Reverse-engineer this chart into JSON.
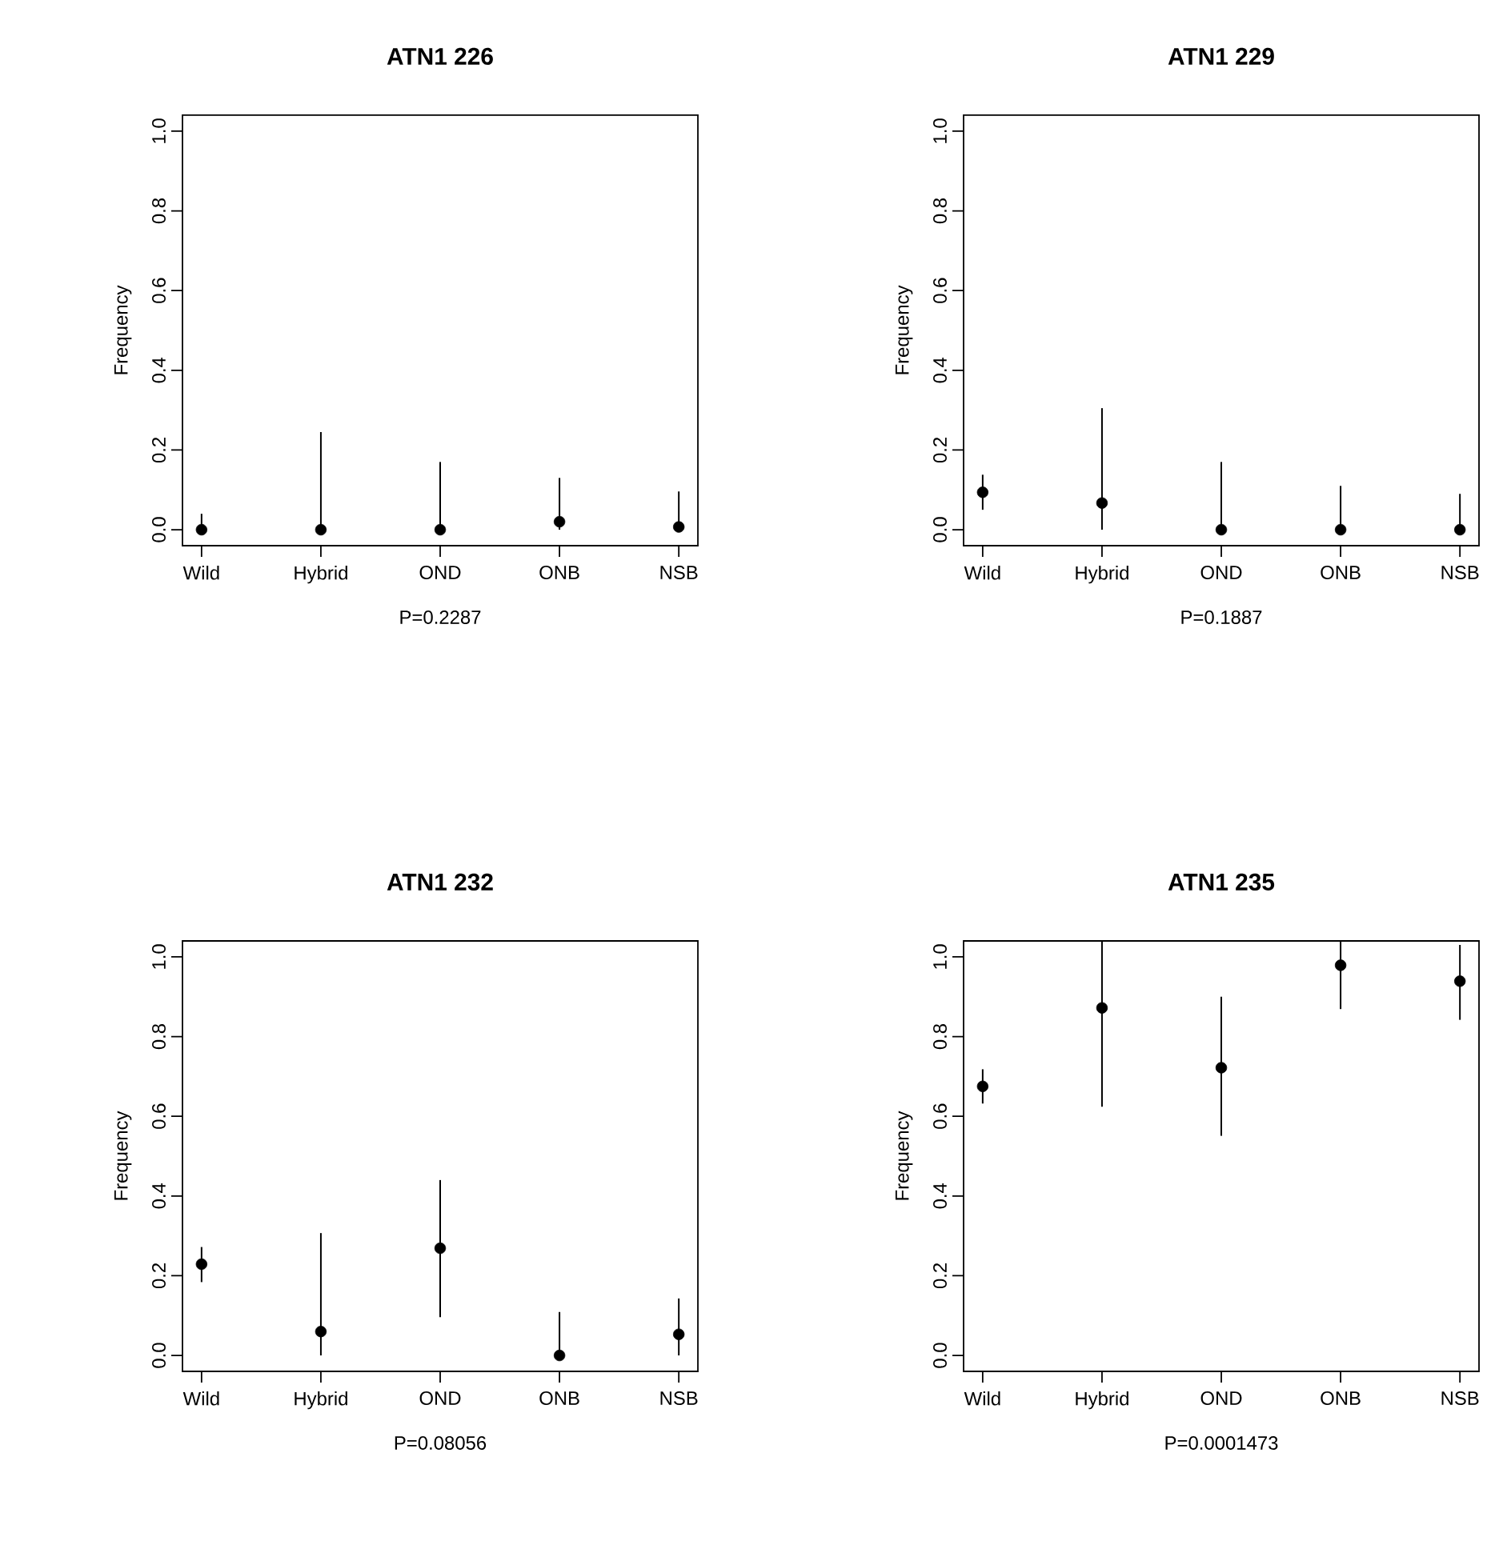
{
  "chart_data": [
    {
      "type": "scatter",
      "title": "ATN1 226",
      "xlabel": "P=0.2287",
      "ylabel": "Frequency",
      "categories": [
        "Wild",
        "Hybrid",
        "OND",
        "ONB",
        "NSB"
      ],
      "color": "#000000",
      "marker": "circle",
      "values": [
        0,
        0,
        0,
        0.02,
        0.007
      ],
      "errors": [
        [
          0,
          0.04
        ],
        [
          0,
          0.245
        ],
        [
          0,
          0.17
        ],
        [
          0,
          0.13
        ],
        [
          0,
          0.096
        ]
      ],
      "ylim": [
        -0.04,
        1.04
      ],
      "yticks": [
        {
          "value": 0,
          "label": "0.0"
        },
        {
          "value": 0.2,
          "label": "0.2"
        },
        {
          "value": 0.4,
          "label": "0.4"
        },
        {
          "value": 0.6,
          "label": "0.6"
        },
        {
          "value": 0.8,
          "label": "0.8"
        },
        {
          "value": 1,
          "label": "1.0"
        }
      ]
    },
    {
      "type": "scatter",
      "title": "ATN1 229",
      "xlabel": "P=0.1887",
      "ylabel": "Frequency",
      "categories": [
        "Wild",
        "Hybrid",
        "OND",
        "ONB",
        "NSB"
      ],
      "color": "#000000",
      "marker": "circle",
      "values": [
        0.094,
        0.067,
        0,
        0,
        0
      ],
      "errors": [
        [
          0.05,
          0.138
        ],
        [
          0,
          0.305
        ],
        [
          0,
          0.17
        ],
        [
          0,
          0.11
        ],
        [
          0,
          0.09
        ]
      ],
      "ylim": [
        -0.04,
        1.04
      ],
      "yticks": [
        {
          "value": 0,
          "label": "0.0"
        },
        {
          "value": 0.2,
          "label": "0.2"
        },
        {
          "value": 0.4,
          "label": "0.4"
        },
        {
          "value": 0.6,
          "label": "0.6"
        },
        {
          "value": 0.8,
          "label": "0.8"
        },
        {
          "value": 1,
          "label": "1.0"
        }
      ]
    },
    {
      "type": "scatter",
      "title": "ATN1 232",
      "xlabel": "P=0.08056",
      "ylabel": "Frequency",
      "categories": [
        "Wild",
        "Hybrid",
        "OND",
        "ONB",
        "NSB"
      ],
      "color": "#000000",
      "marker": "circle",
      "values": [
        0.229,
        0.06,
        0.269,
        0,
        0.053
      ],
      "errors": [
        [
          0.184,
          0.272
        ],
        [
          0,
          0.307
        ],
        [
          0.096,
          0.44
        ],
        [
          0,
          0.109
        ],
        [
          0,
          0.143
        ]
      ],
      "ylim": [
        -0.04,
        1.04
      ],
      "yticks": [
        {
          "value": 0,
          "label": "0.0"
        },
        {
          "value": 0.2,
          "label": "0.2"
        },
        {
          "value": 0.4,
          "label": "0.4"
        },
        {
          "value": 0.6,
          "label": "0.6"
        },
        {
          "value": 0.8,
          "label": "0.8"
        },
        {
          "value": 1,
          "label": "1.0"
        }
      ]
    },
    {
      "type": "scatter",
      "title": "ATN1 235",
      "xlabel": "P=0.0001473",
      "ylabel": "Frequency",
      "categories": [
        "Wild",
        "Hybrid",
        "OND",
        "ONB",
        "NSB"
      ],
      "color": "#000000",
      "marker": "circle",
      "values": [
        0.675,
        0.872,
        0.722,
        0.979,
        0.939
      ],
      "errors": [
        [
          0.632,
          0.718
        ],
        [
          0.624,
          1.04
        ],
        [
          0.551,
          0.9
        ],
        [
          0.869,
          1.04
        ],
        [
          0.842,
          1.03
        ]
      ],
      "ylim": [
        -0.04,
        1.04
      ],
      "yticks": [
        {
          "value": 0,
          "label": "0.0"
        },
        {
          "value": 0.2,
          "label": "0.2"
        },
        {
          "value": 0.4,
          "label": "0.4"
        },
        {
          "value": 0.6,
          "label": "0.6"
        },
        {
          "value": 0.8,
          "label": "0.8"
        },
        {
          "value": 1,
          "label": "1.0"
        }
      ]
    }
  ]
}
